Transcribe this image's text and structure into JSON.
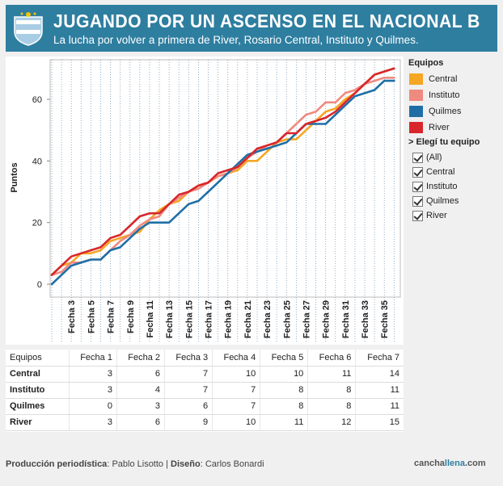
{
  "header": {
    "title": "JUGANDO POR UN ASCENSO EN EL NACIONAL B",
    "subtitle": "La lucha por volver a primera de River, Rosario Central, Instituto y Quilmes."
  },
  "legend": {
    "title": "Equipos",
    "items": [
      {
        "label": "Central",
        "color": "#f5a623"
      },
      {
        "label": "Instituto",
        "color": "#ef8a80"
      },
      {
        "label": "Quilmes",
        "color": "#1f6fa6"
      },
      {
        "label": "River",
        "color": "#d8262c"
      }
    ]
  },
  "filter": {
    "title": "> Elegí tu equipo",
    "options": [
      "(All)",
      "Central",
      "Instituto",
      "Quilmes",
      "River"
    ]
  },
  "chart_data": {
    "type": "line",
    "ylabel": "Puntos",
    "xlabel": "",
    "ylim": [
      0,
      72
    ],
    "yticks": [
      0,
      20,
      40,
      60
    ],
    "x": [
      1,
      2,
      3,
      4,
      5,
      6,
      7,
      8,
      9,
      10,
      11,
      12,
      13,
      14,
      15,
      16,
      17,
      18,
      19,
      20,
      21,
      22,
      23,
      24,
      25,
      26,
      27,
      28,
      29,
      30,
      31,
      32,
      33,
      34,
      35,
      36
    ],
    "xtick_labels": [
      "Fecha 3",
      "Fecha 5",
      "Fecha 7",
      "Fecha 9",
      "Fecha 11",
      "Fecha 13",
      "Fecha 15",
      "Fecha 17",
      "Fecha 19",
      "Fecha 21",
      "Fecha 23",
      "Fecha 25",
      "Fecha 27",
      "Fecha 29",
      "Fecha 31",
      "Fecha 33",
      "Fecha 35"
    ],
    "xtick_positions": [
      3,
      5,
      7,
      9,
      11,
      13,
      15,
      17,
      19,
      21,
      23,
      25,
      27,
      29,
      31,
      33,
      35
    ],
    "grid": true,
    "series": [
      {
        "name": "Central",
        "color": "#f5a623",
        "values": [
          3,
          6,
          7,
          10,
          10,
          11,
          14,
          15,
          16,
          17,
          21,
          24,
          26,
          27,
          30,
          32,
          33,
          35,
          36,
          37,
          40,
          40,
          43,
          46,
          47,
          47,
          50,
          53,
          56,
          57,
          60,
          62,
          65,
          68,
          69,
          70
        ]
      },
      {
        "name": "Instituto",
        "color": "#ef8a80",
        "values": [
          3,
          4,
          7,
          7,
          8,
          8,
          11,
          14,
          16,
          19,
          21,
          22,
          26,
          28,
          30,
          31,
          33,
          35,
          36,
          38,
          41,
          43,
          45,
          46,
          49,
          52,
          55,
          56,
          59,
          59,
          62,
          63,
          65,
          66,
          67,
          67
        ]
      },
      {
        "name": "Quilmes",
        "color": "#1f6fa6",
        "values": [
          0,
          3,
          6,
          7,
          8,
          8,
          11,
          12,
          15,
          18,
          20,
          20,
          20,
          23,
          26,
          27,
          30,
          33,
          36,
          39,
          42,
          43,
          44,
          45,
          46,
          49,
          52,
          52,
          52,
          55,
          58,
          61,
          62,
          63,
          66,
          66
        ]
      },
      {
        "name": "River",
        "color": "#d8262c",
        "values": [
          3,
          6,
          9,
          10,
          11,
          12,
          15,
          16,
          19,
          22,
          23,
          23,
          26,
          29,
          30,
          32,
          33,
          36,
          37,
          38,
          41,
          44,
          45,
          46,
          49,
          49,
          52,
          53,
          54,
          56,
          59,
          62,
          65,
          68,
          69,
          70
        ]
      }
    ]
  },
  "table": {
    "header_label": "Equipos",
    "columns": [
      "Fecha 1",
      "Fecha 2",
      "Fecha 3",
      "Fecha 4",
      "Fecha 5",
      "Fecha 6",
      "Fecha 7"
    ],
    "rows": [
      {
        "label": "Central",
        "values": [
          "3",
          "6",
          "7",
          "10",
          "10",
          "11",
          "14"
        ]
      },
      {
        "label": "Instituto",
        "values": [
          "3",
          "4",
          "7",
          "7",
          "8",
          "8",
          "11"
        ]
      },
      {
        "label": "Quilmes",
        "values": [
          "0",
          "3",
          "6",
          "7",
          "8",
          "8",
          "11"
        ]
      },
      {
        "label": "River",
        "values": [
          "3",
          "6",
          "9",
          "10",
          "11",
          "12",
          "15"
        ]
      }
    ]
  },
  "credits": {
    "prod_label": "Producción periodística",
    "prod_name": "Pablo Lisotto",
    "sep": "|",
    "design_label": "Diseño",
    "design_name": "Carlos Bonardi"
  },
  "logo": {
    "part1": "cancha",
    "part2": "llena",
    "part3": ".com"
  }
}
